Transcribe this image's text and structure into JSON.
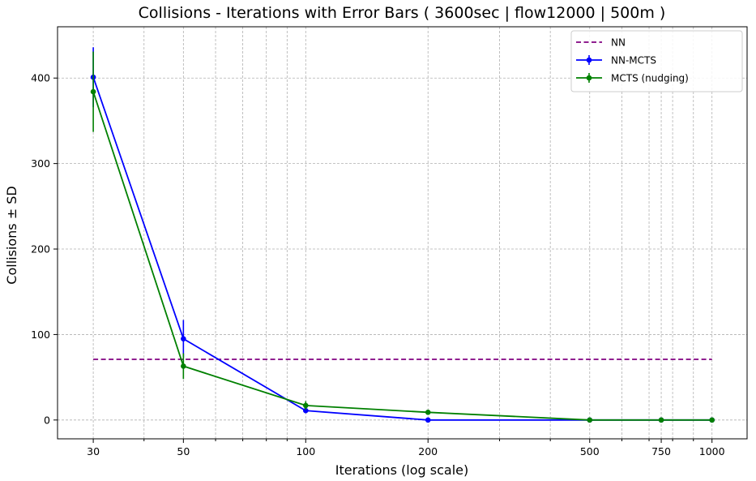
{
  "chart_data": {
    "type": "line",
    "title": "Collisions - Iterations with Error Bars ( 3600sec | flow12000 | 500m )",
    "xlabel": "Iterations (log scale)",
    "ylabel": "Collisions ± SD",
    "x_scale": "log",
    "xlim": [
      24.5,
      1220
    ],
    "ylim": [
      -22,
      460
    ],
    "x_ticks": [
      30,
      50,
      100,
      200,
      500,
      750,
      1000
    ],
    "x_tick_labels": [
      "30",
      "50",
      "100",
      "200",
      "500",
      "750",
      "1000"
    ],
    "y_ticks": [
      0,
      100,
      200,
      300,
      400
    ],
    "y_tick_labels": [
      "0",
      "100",
      "200",
      "300",
      "400"
    ],
    "grid": true,
    "legend_position": "top-right",
    "reference_lines": [
      {
        "name": "NN",
        "y": 71,
        "x_range": [
          30,
          1000
        ],
        "color": "#800080",
        "style": "dashed"
      }
    ],
    "series": [
      {
        "name": "NN-MCTS",
        "color": "#0000ff",
        "x": [
          30,
          50,
          100,
          200,
          500,
          750,
          1000
        ],
        "y": [
          401,
          95,
          11,
          0,
          0,
          0,
          0
        ],
        "error": [
          35,
          22,
          3,
          0,
          0,
          0,
          0
        ]
      },
      {
        "name": "MCTS (nudging)",
        "color": "#008000",
        "x": [
          30,
          50,
          100,
          200,
          500,
          750,
          1000
        ],
        "y": [
          384,
          63,
          17,
          9,
          0,
          0,
          0
        ],
        "error": [
          47,
          15,
          5,
          1,
          0,
          0,
          0
        ]
      }
    ]
  }
}
